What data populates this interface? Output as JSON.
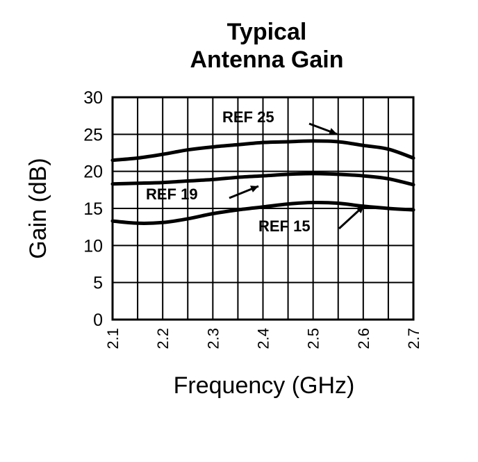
{
  "chart_data": {
    "type": "line",
    "title": [
      "Typical",
      "Antenna Gain"
    ],
    "xlabel": "Frequency (GHz)",
    "ylabel": "Gain (dB)",
    "xlim": [
      2.1,
      2.7
    ],
    "ylim": [
      0,
      30
    ],
    "x_ticks": [
      "2.1",
      "2.2",
      "2.3",
      "2.4",
      "2.5",
      "2.6",
      "2.7"
    ],
    "y_ticks": [
      "0",
      "5",
      "10",
      "15",
      "20",
      "25",
      "30"
    ],
    "grid": true,
    "x": [
      2.1,
      2.15,
      2.2,
      2.25,
      2.3,
      2.35,
      2.4,
      2.45,
      2.5,
      2.55,
      2.6,
      2.65,
      2.7
    ],
    "series": [
      {
        "name": "REF 25",
        "values": [
          21.5,
          21.8,
          22.3,
          22.9,
          23.3,
          23.6,
          23.9,
          24.0,
          24.1,
          24.0,
          23.5,
          23.0,
          21.8
        ]
      },
      {
        "name": "REF 19",
        "values": [
          18.3,
          18.4,
          18.5,
          18.7,
          18.9,
          19.2,
          19.4,
          19.6,
          19.7,
          19.6,
          19.4,
          19.0,
          18.2
        ]
      },
      {
        "name": "REF 15",
        "values": [
          13.3,
          13.0,
          13.1,
          13.6,
          14.3,
          14.8,
          15.2,
          15.6,
          15.8,
          15.7,
          15.3,
          15.0,
          14.8
        ]
      }
    ],
    "annotations": [
      {
        "text": "REF 25",
        "series": "REF 25"
      },
      {
        "text": "REF 19",
        "series": "REF 19"
      },
      {
        "text": "REF 15",
        "series": "REF 15"
      }
    ],
    "colors": {
      "line": "#000000",
      "grid": "#000000",
      "background": "#ffffff"
    }
  }
}
